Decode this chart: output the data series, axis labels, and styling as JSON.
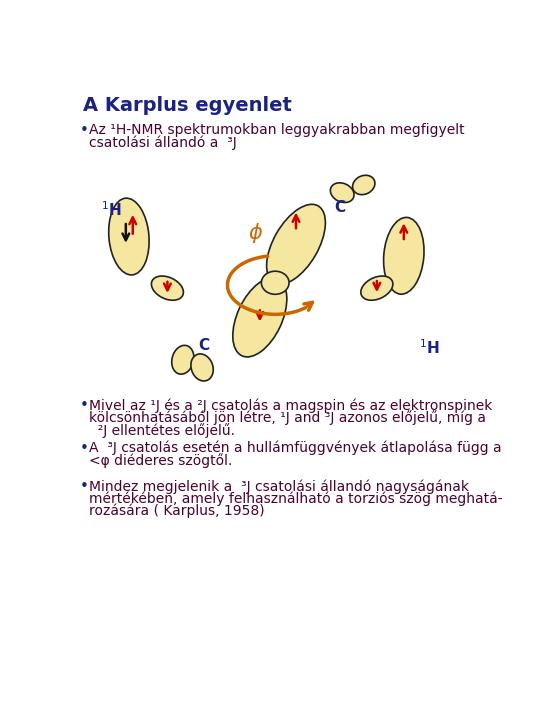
{
  "title": "A Karplus egyenlet",
  "title_color": "#1a237e",
  "title_fontsize": 14,
  "bg_color": "#ffffff",
  "text_color": "#4a0030",
  "bullet_color": "#1a237e",
  "label_color": "#1a237e",
  "arrow_color": "#cc0000",
  "orbital_fill": "#f5e6a0",
  "orbital_edge": "#222222",
  "phi_color": "#cc6600",
  "bullet1_line1": "Az ¹H-NMR spektrumokban leggyakrabban megfigyelt",
  "bullet1_line2": "csatolási állandó a  ³J",
  "bullet2_line1": "Mivel az ¹J és a ²J csatolás a magspin és az elektronspinek",
  "bullet2_line2": "kölcsönhatásából jön létre, ¹J and ³J azonos előjelű, míg a",
  "bullet2_line3": "  ²J ellentétes előjelű.",
  "bullet3_line1": "A  ³J csatolás esetén a hullámfüggvények átlapolása függ a",
  "bullet3_line2": "<φ diéderes szögtől.",
  "bullet4_line1": "Mindez megjelenik a  ³J csatolási állandó nagyságának",
  "bullet4_line2": "mértékében, amely felhasználható a torziós szög meghatá-",
  "bullet4_line3": "rozására ( Karplus, 1958)"
}
